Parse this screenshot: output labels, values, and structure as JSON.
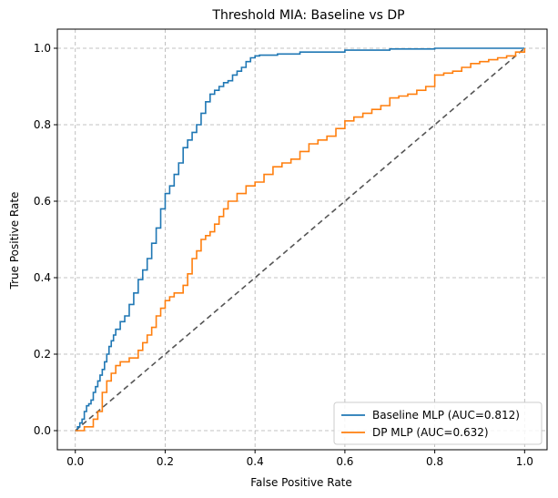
{
  "chart_data": {
    "type": "line",
    "title": "Threshold MIA: Baseline vs DP",
    "xlabel": "False Positive Rate",
    "ylabel": "True Positive Rate",
    "xlim": [
      -0.04,
      1.05
    ],
    "ylim": [
      -0.05,
      1.05
    ],
    "xticks": [
      0.0,
      0.2,
      0.4,
      0.6,
      0.8,
      1.0
    ],
    "yticks": [
      0.0,
      0.2,
      0.4,
      0.6,
      0.8,
      1.0
    ],
    "tick_labels": [
      "0.0",
      "0.2",
      "0.4",
      "0.6",
      "0.8",
      "1.0"
    ],
    "grid": true,
    "legend_position": "lower-right",
    "series": [
      {
        "name": "Baseline MLP (AUC=0.812)",
        "color": "#1f77b4",
        "style": "step",
        "points": [
          [
            0.0,
            0.0
          ],
          [
            0.005,
            0.01
          ],
          [
            0.01,
            0.02
          ],
          [
            0.015,
            0.03
          ],
          [
            0.02,
            0.05
          ],
          [
            0.025,
            0.065
          ],
          [
            0.03,
            0.07
          ],
          [
            0.035,
            0.08
          ],
          [
            0.04,
            0.1
          ],
          [
            0.045,
            0.115
          ],
          [
            0.05,
            0.13
          ],
          [
            0.055,
            0.145
          ],
          [
            0.06,
            0.16
          ],
          [
            0.065,
            0.18
          ],
          [
            0.07,
            0.2
          ],
          [
            0.075,
            0.22
          ],
          [
            0.08,
            0.235
          ],
          [
            0.085,
            0.25
          ],
          [
            0.09,
            0.265
          ],
          [
            0.1,
            0.285
          ],
          [
            0.11,
            0.3
          ],
          [
            0.12,
            0.33
          ],
          [
            0.13,
            0.36
          ],
          [
            0.14,
            0.395
          ],
          [
            0.15,
            0.42
          ],
          [
            0.16,
            0.45
          ],
          [
            0.17,
            0.49
          ],
          [
            0.18,
            0.53
          ],
          [
            0.19,
            0.58
          ],
          [
            0.2,
            0.62
          ],
          [
            0.21,
            0.64
          ],
          [
            0.22,
            0.67
          ],
          [
            0.23,
            0.7
          ],
          [
            0.24,
            0.74
          ],
          [
            0.25,
            0.76
          ],
          [
            0.26,
            0.78
          ],
          [
            0.27,
            0.8
          ],
          [
            0.28,
            0.83
          ],
          [
            0.29,
            0.86
          ],
          [
            0.3,
            0.88
          ],
          [
            0.31,
            0.89
          ],
          [
            0.32,
            0.9
          ],
          [
            0.33,
            0.91
          ],
          [
            0.34,
            0.915
          ],
          [
            0.35,
            0.93
          ],
          [
            0.36,
            0.94
          ],
          [
            0.37,
            0.95
          ],
          [
            0.38,
            0.965
          ],
          [
            0.39,
            0.975
          ],
          [
            0.4,
            0.98
          ],
          [
            0.41,
            0.982
          ],
          [
            0.45,
            0.985
          ],
          [
            0.5,
            0.99
          ],
          [
            0.6,
            0.995
          ],
          [
            0.7,
            0.998
          ],
          [
            0.8,
            1.0
          ],
          [
            1.0,
            1.0
          ]
        ]
      },
      {
        "name": "DP MLP (AUC=0.632)",
        "color": "#ff7f0e",
        "style": "step",
        "points": [
          [
            0.0,
            0.0
          ],
          [
            0.02,
            0.01
          ],
          [
            0.04,
            0.03
          ],
          [
            0.05,
            0.05
          ],
          [
            0.06,
            0.1
          ],
          [
            0.07,
            0.13
          ],
          [
            0.08,
            0.15
          ],
          [
            0.09,
            0.17
          ],
          [
            0.1,
            0.18
          ],
          [
            0.12,
            0.19
          ],
          [
            0.14,
            0.21
          ],
          [
            0.15,
            0.23
          ],
          [
            0.16,
            0.25
          ],
          [
            0.17,
            0.27
          ],
          [
            0.18,
            0.3
          ],
          [
            0.19,
            0.32
          ],
          [
            0.2,
            0.34
          ],
          [
            0.21,
            0.35
          ],
          [
            0.22,
            0.36
          ],
          [
            0.24,
            0.38
          ],
          [
            0.25,
            0.41
          ],
          [
            0.26,
            0.45
          ],
          [
            0.27,
            0.47
          ],
          [
            0.28,
            0.5
          ],
          [
            0.29,
            0.51
          ],
          [
            0.3,
            0.52
          ],
          [
            0.31,
            0.54
          ],
          [
            0.32,
            0.56
          ],
          [
            0.33,
            0.58
          ],
          [
            0.34,
            0.6
          ],
          [
            0.36,
            0.62
          ],
          [
            0.38,
            0.64
          ],
          [
            0.4,
            0.65
          ],
          [
            0.42,
            0.67
          ],
          [
            0.44,
            0.69
          ],
          [
            0.46,
            0.7
          ],
          [
            0.48,
            0.71
          ],
          [
            0.5,
            0.73
          ],
          [
            0.52,
            0.75
          ],
          [
            0.54,
            0.76
          ],
          [
            0.56,
            0.77
          ],
          [
            0.58,
            0.79
          ],
          [
            0.6,
            0.81
          ],
          [
            0.62,
            0.82
          ],
          [
            0.64,
            0.83
          ],
          [
            0.66,
            0.84
          ],
          [
            0.68,
            0.85
          ],
          [
            0.7,
            0.87
          ],
          [
            0.72,
            0.875
          ],
          [
            0.74,
            0.88
          ],
          [
            0.76,
            0.89
          ],
          [
            0.78,
            0.9
          ],
          [
            0.8,
            0.93
          ],
          [
            0.82,
            0.935
          ],
          [
            0.84,
            0.94
          ],
          [
            0.86,
            0.95
          ],
          [
            0.88,
            0.96
          ],
          [
            0.9,
            0.965
          ],
          [
            0.92,
            0.97
          ],
          [
            0.94,
            0.975
          ],
          [
            0.96,
            0.98
          ],
          [
            0.98,
            0.99
          ],
          [
            1.0,
            1.0
          ]
        ]
      }
    ],
    "reference_line": {
      "points": [
        [
          0.0,
          0.0
        ],
        [
          1.0,
          1.0
        ]
      ],
      "color": "#555555",
      "style": "dashed"
    }
  }
}
